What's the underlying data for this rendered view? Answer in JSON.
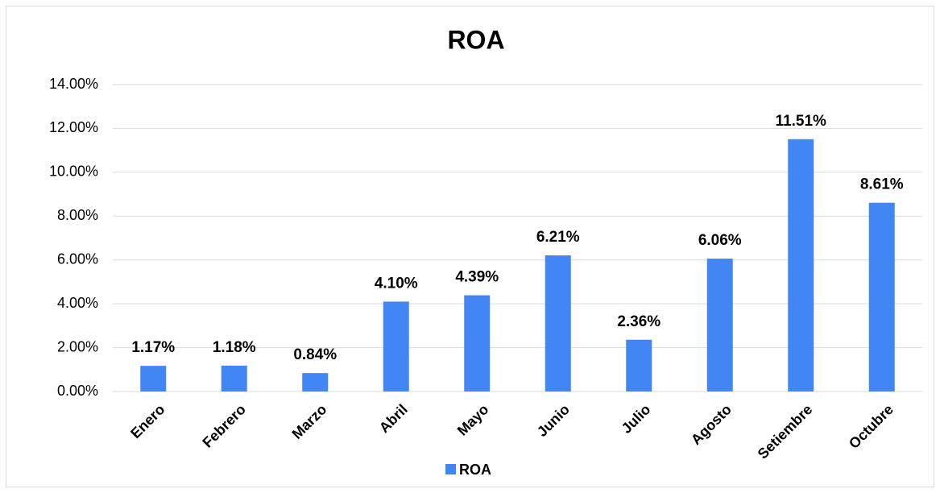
{
  "chart_data": {
    "type": "bar",
    "title": "ROA",
    "categories": [
      "Enero",
      "Febrero",
      "Marzo",
      "Abril",
      "Mayo",
      "Junio",
      "Julio",
      "Agosto",
      "Setiembre",
      "Octubre"
    ],
    "series": [
      {
        "name": "ROA",
        "color": "#4285f4",
        "values": [
          1.17,
          1.18,
          0.84,
          4.1,
          4.39,
          6.21,
          2.36,
          6.06,
          11.51,
          8.61
        ],
        "value_labels": [
          "1.17%",
          "1.18%",
          "0.84%",
          "4.10%",
          "4.39%",
          "6.21%",
          "2.36%",
          "6.06%",
          "11.51%",
          "8.61%"
        ]
      }
    ],
    "ylim": [
      0,
      14
    ],
    "yticks": [
      {
        "value": 0,
        "label": "0.00%"
      },
      {
        "value": 2,
        "label": "2.00%"
      },
      {
        "value": 4,
        "label": "4.00%"
      },
      {
        "value": 6,
        "label": "6.00%"
      },
      {
        "value": 8,
        "label": "8.00%"
      },
      {
        "value": 10,
        "label": "10.00%"
      },
      {
        "value": 12,
        "label": "12.00%"
      },
      {
        "value": 14,
        "label": "14.00%"
      }
    ],
    "grid": true,
    "legend": "bottom"
  }
}
